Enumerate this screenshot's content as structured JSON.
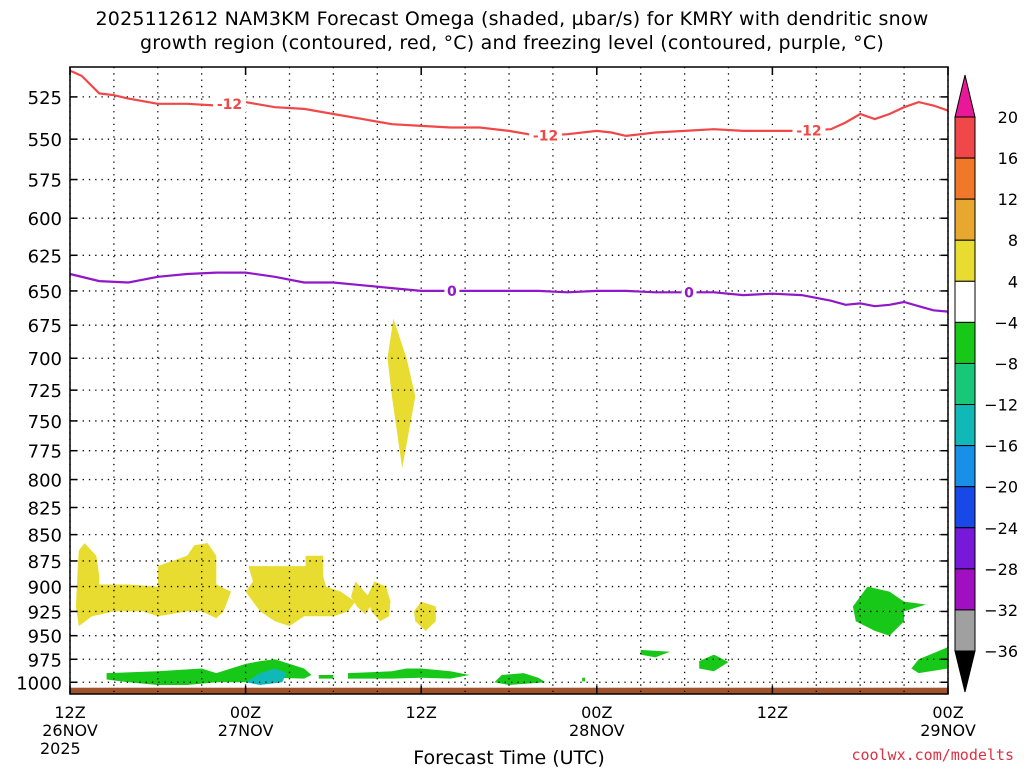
{
  "header": {
    "title_line1": "2025112612 NAM3KM Forecast Omega (shaded, µbar/s) for KMRY with dendritic snow",
    "title_line2": "growth region (contoured, red, °C) and freezing level (contoured, purple, °C)"
  },
  "footer": {
    "credit": "coolwx.com/modelts"
  },
  "chart_data": {
    "type": "heatmap",
    "xlabel": "Forecast Time (UTC)",
    "x_range_hours": [
      0,
      60
    ],
    "y_reversed": true,
    "y_range_hpa": [
      1013,
      508
    ],
    "ylabel": "",
    "y_ticks": [
      525,
      550,
      575,
      600,
      625,
      650,
      675,
      700,
      725,
      750,
      775,
      800,
      825,
      850,
      875,
      900,
      925,
      950,
      975,
      1000
    ],
    "x_ticks": [
      {
        "hour": 0,
        "lines": [
          "12Z",
          "26NOV",
          "2025"
        ]
      },
      {
        "hour": 12,
        "lines": [
          "00Z",
          "27NOV"
        ]
      },
      {
        "hour": 24,
        "lines": [
          "12Z"
        ]
      },
      {
        "hour": 36,
        "lines": [
          "00Z",
          "28NOV"
        ]
      },
      {
        "hour": 48,
        "lines": [
          "12Z"
        ]
      },
      {
        "hour": 60,
        "lines": [
          "00Z",
          "29NOV"
        ]
      }
    ],
    "grid": true,
    "colorbar": {
      "placement": "right",
      "levels": [
        20,
        16,
        12,
        8,
        4,
        -4,
        -8,
        -12,
        -16,
        -20,
        -24,
        -28,
        -32,
        -36
      ],
      "colors_top_to_bottom": [
        "#e81898",
        "#f04848",
        "#f07828",
        "#e8a830",
        "#e8dc30",
        "#ffffff",
        "#18c818",
        "#18c878",
        "#10b8b8",
        "#1890e8",
        "#1848e8",
        "#7818d8",
        "#a010c0",
        "#a0a0a0",
        "#000000"
      ]
    },
    "contour_dgz": {
      "name": "-12",
      "color": "#f04848",
      "label_hours": [
        10.9,
        32.5,
        50.5
      ],
      "points": [
        [
          0,
          510
        ],
        [
          0.8,
          513
        ],
        [
          2,
          523
        ],
        [
          3,
          524
        ],
        [
          4,
          526
        ],
        [
          6,
          529
        ],
        [
          8,
          529
        ],
        [
          10,
          530
        ],
        [
          12,
          528
        ],
        [
          14,
          531
        ],
        [
          16,
          532
        ],
        [
          18,
          535
        ],
        [
          20,
          538
        ],
        [
          22,
          541
        ],
        [
          24,
          542
        ],
        [
          26,
          543
        ],
        [
          28,
          543
        ],
        [
          30,
          545
        ],
        [
          32,
          548
        ],
        [
          34,
          547
        ],
        [
          36,
          545
        ],
        [
          37,
          546
        ],
        [
          38,
          548
        ],
        [
          40,
          546
        ],
        [
          42,
          545
        ],
        [
          44,
          544
        ],
        [
          46,
          545
        ],
        [
          48,
          545
        ],
        [
          50,
          545
        ],
        [
          52,
          544
        ],
        [
          53,
          540
        ],
        [
          54,
          535
        ],
        [
          55,
          538
        ],
        [
          56,
          535
        ],
        [
          57,
          531
        ],
        [
          58,
          528
        ],
        [
          59,
          530
        ],
        [
          60,
          533
        ]
      ]
    },
    "contour_freezing": {
      "name": "0",
      "color": "#9018c8",
      "label_hours": [
        26.1,
        42.3
      ],
      "points": [
        [
          0,
          638
        ],
        [
          2,
          643
        ],
        [
          4,
          644
        ],
        [
          6,
          640
        ],
        [
          8,
          638
        ],
        [
          10,
          637
        ],
        [
          12,
          637
        ],
        [
          14,
          640
        ],
        [
          16,
          644
        ],
        [
          18,
          644
        ],
        [
          20,
          646
        ],
        [
          22,
          648
        ],
        [
          24,
          650
        ],
        [
          26,
          650
        ],
        [
          28,
          650
        ],
        [
          30,
          650
        ],
        [
          32,
          650
        ],
        [
          34,
          651
        ],
        [
          36,
          650
        ],
        [
          38,
          650
        ],
        [
          40,
          651
        ],
        [
          42,
          651
        ],
        [
          44,
          651
        ],
        [
          46,
          653
        ],
        [
          48,
          652
        ],
        [
          50,
          653
        ],
        [
          52,
          657
        ],
        [
          53,
          660
        ],
        [
          54,
          659
        ],
        [
          55,
          661
        ],
        [
          56,
          660
        ],
        [
          57,
          658
        ],
        [
          58,
          661
        ],
        [
          59,
          664
        ],
        [
          60,
          665
        ]
      ]
    },
    "regions": [
      {
        "value": 6,
        "points": [
          [
            1,
            858
          ],
          [
            1.8,
            870
          ],
          [
            2,
            890
          ],
          [
            2,
            898
          ],
          [
            4,
            898
          ],
          [
            6,
            900
          ],
          [
            6,
            880
          ],
          [
            8,
            870
          ],
          [
            8.5,
            860
          ],
          [
            9.4,
            858
          ],
          [
            10,
            870
          ],
          [
            10,
            898
          ],
          [
            11,
            905
          ],
          [
            10.5,
            925
          ],
          [
            10,
            932
          ],
          [
            9,
            925
          ],
          [
            8,
            925
          ],
          [
            6,
            930
          ],
          [
            5,
            925
          ],
          [
            3,
            925
          ],
          [
            1.5,
            930
          ],
          [
            0.6,
            940
          ],
          [
            0.4,
            920
          ],
          [
            0.5,
            890
          ],
          [
            0.6,
            865
          ]
        ]
      },
      {
        "value": 6,
        "points": [
          [
            12.2,
            880
          ],
          [
            16.1,
            880
          ],
          [
            16.1,
            870
          ],
          [
            17.3,
            870
          ],
          [
            17.3,
            890
          ],
          [
            17.5,
            900
          ],
          [
            18.5,
            905
          ],
          [
            19.5,
            915
          ],
          [
            19,
            925
          ],
          [
            18,
            930
          ],
          [
            16,
            930
          ],
          [
            15,
            940
          ],
          [
            14,
            935
          ],
          [
            13,
            925
          ],
          [
            12.5,
            915
          ],
          [
            12,
            905
          ],
          [
            12.5,
            895
          ]
        ]
      },
      {
        "value": 6,
        "points": [
          [
            22.1,
            670
          ],
          [
            23,
            700
          ],
          [
            23.6,
            730
          ],
          [
            22.7,
            790
          ],
          [
            22,
            730
          ],
          [
            21.7,
            700
          ]
        ]
      },
      {
        "value": 6,
        "points": [
          [
            20.8,
            895
          ],
          [
            21.6,
            900
          ],
          [
            21.9,
            915
          ],
          [
            21.8,
            930
          ],
          [
            21.2,
            935
          ],
          [
            20.6,
            925
          ],
          [
            20.3,
            910
          ]
        ]
      },
      {
        "value": 6,
        "points": [
          [
            24,
            915
          ],
          [
            25,
            920
          ],
          [
            25,
            935
          ],
          [
            24.3,
            945
          ],
          [
            23.6,
            935
          ],
          [
            23.5,
            925
          ]
        ]
      },
      {
        "value": 6,
        "points": [
          [
            19.5,
            895
          ],
          [
            20.3,
            908
          ],
          [
            21.2,
            913
          ],
          [
            20.6,
            918
          ],
          [
            20.2,
            928
          ],
          [
            19.6,
            920
          ],
          [
            19.2,
            910
          ]
        ]
      },
      {
        "value": -6,
        "points": [
          [
            2.5,
            990
          ],
          [
            6,
            988
          ],
          [
            9,
            985
          ],
          [
            10,
            990
          ],
          [
            11,
            985
          ],
          [
            12,
            980
          ],
          [
            13,
            977
          ],
          [
            14,
            975
          ],
          [
            15,
            980
          ],
          [
            16,
            985
          ],
          [
            16.5,
            992
          ],
          [
            16,
            996
          ],
          [
            14,
            995
          ],
          [
            12,
            1000
          ],
          [
            10,
            1000
          ],
          [
            8,
            1003
          ],
          [
            6,
            1003
          ],
          [
            4,
            1000
          ],
          [
            2.5,
            997
          ]
        ]
      },
      {
        "value": -14,
        "points": [
          [
            12,
            1000
          ],
          [
            13,
            990
          ],
          [
            14,
            985
          ],
          [
            14.8,
            990
          ],
          [
            14.5,
            1000
          ],
          [
            13,
            1003
          ]
        ]
      },
      {
        "value": -6,
        "points": [
          [
            17,
            992
          ],
          [
            18,
            992
          ],
          [
            18,
            996
          ],
          [
            17,
            996
          ]
        ]
      },
      {
        "value": -6,
        "points": [
          [
            19,
            990
          ],
          [
            22,
            988
          ],
          [
            23,
            985
          ],
          [
            24,
            985
          ],
          [
            26,
            988
          ],
          [
            27.3,
            992
          ],
          [
            26,
            996
          ],
          [
            24,
            995
          ],
          [
            22,
            996
          ],
          [
            19,
            996
          ]
        ]
      },
      {
        "value": -6,
        "points": [
          [
            29.5,
            992
          ],
          [
            31,
            990
          ],
          [
            32,
            995
          ],
          [
            32.5,
            1000
          ],
          [
            30,
            1003
          ],
          [
            29,
            1000
          ]
        ]
      },
      {
        "value": -6,
        "points": [
          [
            35,
            995
          ],
          [
            35.2,
            995
          ],
          [
            35.2,
            999
          ],
          [
            35,
            999
          ]
        ]
      },
      {
        "value": -6,
        "points": [
          [
            39,
            965
          ],
          [
            41,
            967
          ],
          [
            40,
            973
          ],
          [
            39,
            970
          ]
        ]
      },
      {
        "value": -6,
        "points": [
          [
            43,
            977
          ],
          [
            44,
            970
          ],
          [
            45,
            978
          ],
          [
            44,
            988
          ],
          [
            43,
            985
          ]
        ]
      },
      {
        "value": -6,
        "points": [
          [
            54.5,
            900
          ],
          [
            56,
            905
          ],
          [
            57,
            915
          ],
          [
            58.5,
            918
          ],
          [
            57,
            925
          ],
          [
            57,
            935
          ],
          [
            56,
            950
          ],
          [
            55,
            945
          ],
          [
            53.7,
            935
          ],
          [
            53.5,
            920
          ]
        ]
      },
      {
        "value": -6,
        "points": [
          [
            58,
            975
          ],
          [
            60,
            962
          ],
          [
            60,
            985
          ],
          [
            58,
            990
          ],
          [
            57.5,
            985
          ]
        ]
      }
    ],
    "terrain": {
      "color": "#a0522d",
      "top_hpa": 1006
    }
  }
}
